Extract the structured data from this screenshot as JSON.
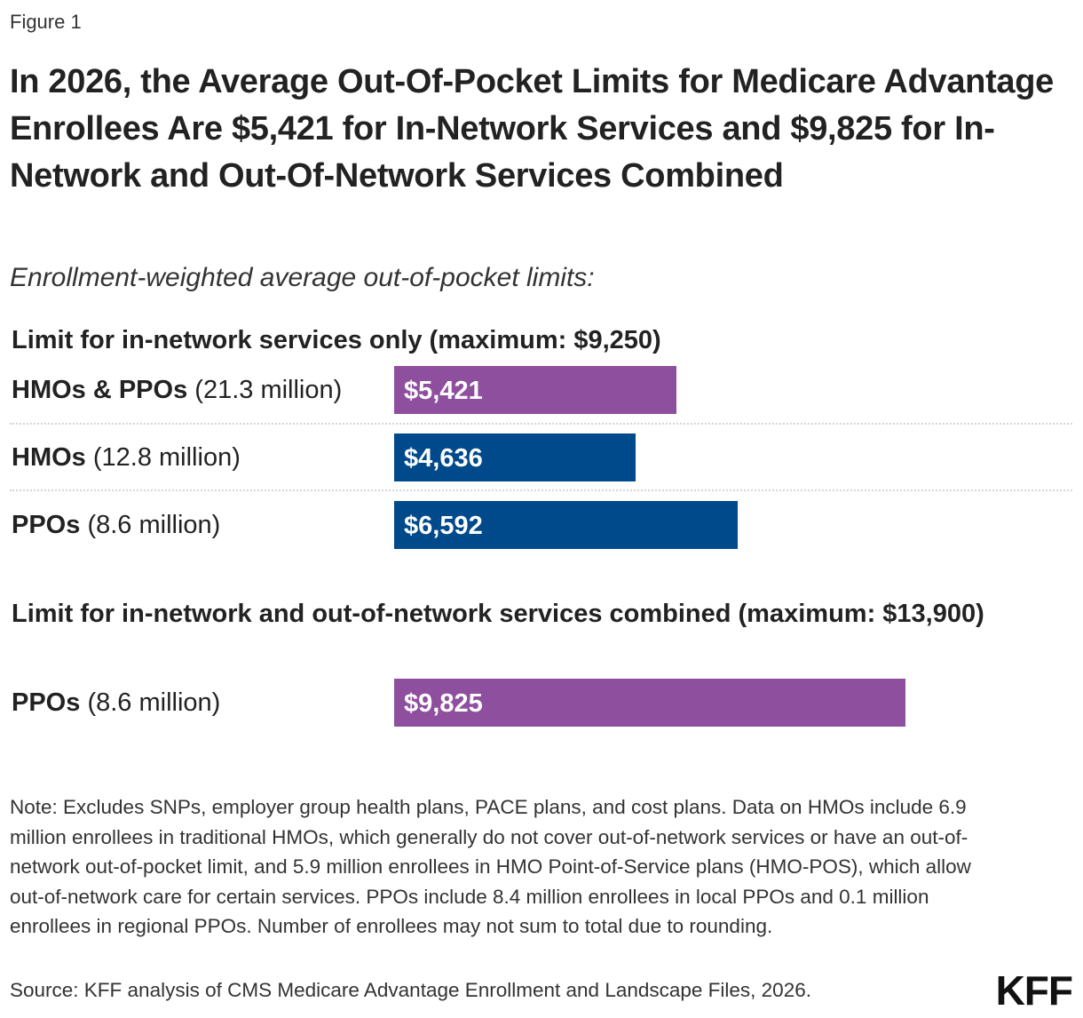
{
  "figure_label": "Figure 1",
  "chart_data": {
    "type": "bar",
    "title": "In 2026, the Average Out-Of-Pocket Limits for Medicare Advantage Enrollees Are $5,421 for In-Network Services and $9,825 for In-Network and Out-Of-Network Services Combined",
    "subtitle": "Enrollment-weighted average out-of-pocket limits:",
    "orientation": "horizontal",
    "xlim": [
      0,
      13900
    ],
    "grid": false,
    "legend": "none",
    "groups": [
      {
        "title": "Limit for in-network services only (maximum: $9,250)",
        "rows": [
          {
            "name": "HMOs & PPOs",
            "enrollment": "(21.3 million)",
            "value": 5421,
            "label": "$5,421",
            "color": "#8f4f9f"
          },
          {
            "name": "HMOs",
            "enrollment": "(12.8 million)",
            "value": 4636,
            "label": "$4,636",
            "color": "#004a8b"
          },
          {
            "name": "PPOs",
            "enrollment": "(8.6 million)",
            "value": 6592,
            "label": "$6,592",
            "color": "#004a8b"
          }
        ]
      },
      {
        "title": "Limit for in-network and out-of-network services combined (maximum: $13,900)",
        "rows": [
          {
            "name": "PPOs",
            "enrollment": "(8.6 million)",
            "value": 9825,
            "label": "$9,825",
            "color": "#8f4f9f"
          }
        ]
      }
    ]
  },
  "note": "Note: Excludes SNPs, employer group health plans, PACE plans, and cost plans. Data on HMOs include 6.9 million enrollees in traditional HMOs, which generally do not cover out-of-network services or have an out-of-network out-of-pocket limit, and 5.9 million enrollees in HMO Point-of-Service plans (HMO-POS), which allow out-of-network care for certain services. PPOs include 8.4 million enrollees in local PPOs and 0.1 million enrollees in regional PPOs. Number of enrollees may not sum to total due to rounding.",
  "source": "Source: KFF analysis of CMS Medicare Advantage Enrollment and Landscape Files, 2026.",
  "logo": "KFF"
}
